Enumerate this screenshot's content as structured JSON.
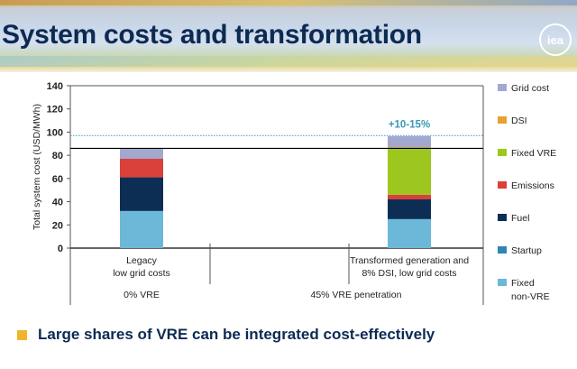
{
  "header": {
    "title": "System costs and transformation",
    "logo_text": "iea"
  },
  "chart_data": {
    "type": "bar",
    "stacked": true,
    "ylabel": "Total system cost (USD/MWh)",
    "ylim": [
      0,
      140
    ],
    "yticks": [
      0,
      20,
      40,
      60,
      80,
      100,
      120,
      140
    ],
    "categories": [
      {
        "lines": [
          "Legacy",
          "low grid costs"
        ]
      },
      {
        "lines": [
          "Transformed generation and",
          "8% DSI, low grid costs"
        ]
      }
    ],
    "groups": [
      "0% VRE",
      "45% VRE penetration"
    ],
    "series": [
      {
        "name": "Fixed non-VRE",
        "legend_lines": [
          "Fixed",
          "non-VRE"
        ],
        "color": "#6cb8d8",
        "values": [
          32,
          25
        ]
      },
      {
        "name": "Startup",
        "legend_lines": [
          "Startup"
        ],
        "color": "#2e86b5",
        "values": [
          0,
          0
        ]
      },
      {
        "name": "Fuel",
        "legend_lines": [
          "Fuel"
        ],
        "color": "#0c2e55",
        "values": [
          29,
          17
        ]
      },
      {
        "name": "Emissions",
        "legend_lines": [
          "Emissions"
        ],
        "color": "#d9413a",
        "values": [
          16,
          4
        ]
      },
      {
        "name": "Fixed VRE",
        "legend_lines": [
          "Fixed VRE"
        ],
        "color": "#9dc71e",
        "values": [
          0,
          40
        ]
      },
      {
        "name": "DSI",
        "legend_lines": [
          "DSI"
        ],
        "color": "#e8a030",
        "values": [
          0,
          1
        ]
      },
      {
        "name": "Grid cost",
        "legend_lines": [
          "Grid cost"
        ],
        "color": "#a3a8cf",
        "values": [
          9,
          9.5
        ]
      }
    ],
    "reference_lines": [
      {
        "value": 86,
        "style": "solid",
        "color": "#000000"
      },
      {
        "value": 97,
        "style": "dotted",
        "color": "#3a9ab5"
      }
    ],
    "annotation": {
      "text": "+10-15%",
      "category": 1,
      "color": "#3a9ab5"
    },
    "grid": false,
    "legend": "right"
  },
  "bullet": {
    "text": "Large shares of VRE can be integrated cost-effectively",
    "color": "#f0b429"
  }
}
